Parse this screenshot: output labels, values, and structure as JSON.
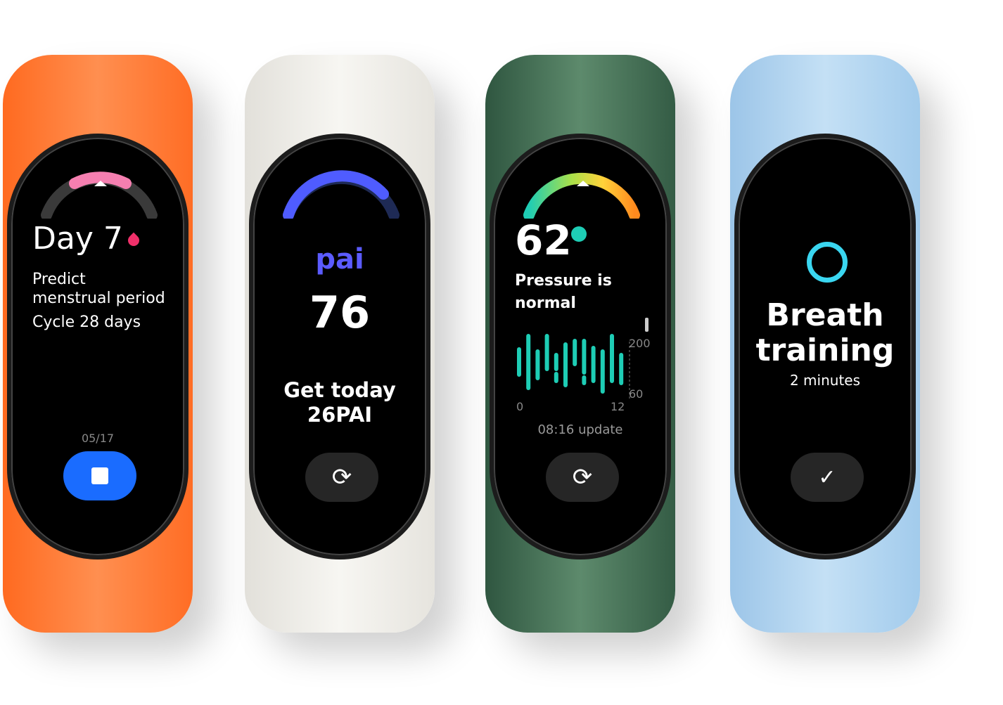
{
  "bands": [
    {
      "color": "#ff7a35",
      "screen": {
        "day": "Day 7",
        "line1": "Predict",
        "line2": "menstrual period",
        "cycle": "Cycle 28 days",
        "date": "05/17",
        "button_color": "#1a6cff",
        "icon": "stop-icon"
      }
    },
    {
      "color": "#f3f1ec",
      "screen": {
        "logo": "pai",
        "value": "76",
        "line1": "Get today",
        "line2": "26PAI",
        "icon": "refresh-icon"
      }
    },
    {
      "color": "#3f6a50",
      "screen": {
        "value": "62",
        "line1": "Pressure is",
        "line2": "normal",
        "x_start": "0",
        "x_end": "12",
        "y_max": "200",
        "y_min": "60",
        "update": "08:16 update",
        "icon": "refresh-icon",
        "chart_data": {
          "type": "bar",
          "y_range": [
            60,
            200
          ],
          "bar_color": "#1ecdb5",
          "bars": [
            [
              [
                110,
                182
              ]
            ],
            [
              [
                72,
                220
              ]
            ],
            [
              [
                100,
                176
              ]
            ],
            [
              [
                126,
                220
              ]
            ],
            [
              [
                126,
                166
              ],
              [
                92,
                112
              ]
            ],
            [
              [
                80,
                196
              ]
            ],
            [
              [
                140,
                206
              ]
            ],
            [
              [
                116,
                206
              ],
              [
                86,
                102
              ]
            ],
            [
              [
                92,
                186
              ]
            ],
            [
              [
                62,
                176
              ]
            ],
            [
              [
                92,
                220
              ]
            ],
            [
              [
                86,
                166
              ]
            ]
          ]
        }
      }
    },
    {
      "color": "#b3d4ee",
      "screen": {
        "title1": "Breath",
        "title2": "training",
        "subtitle": "2 minutes",
        "icon": "check-icon"
      }
    }
  ]
}
